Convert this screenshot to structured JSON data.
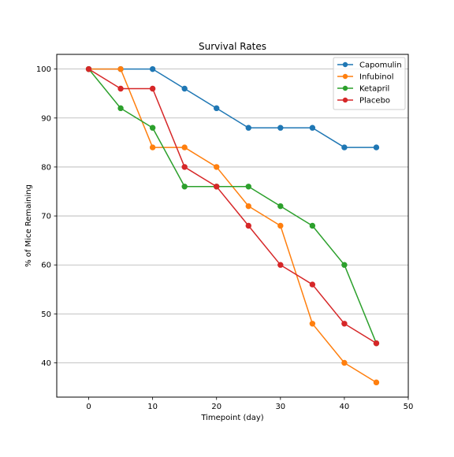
{
  "chart_data": {
    "type": "line",
    "title": "Survival Rates",
    "xlabel": "Timepoint (day)",
    "ylabel": "% of Mice Remaining",
    "xlim": [
      -5,
      50
    ],
    "ylim": [
      33,
      103
    ],
    "xticks": [
      0,
      10,
      20,
      30,
      40,
      50
    ],
    "yticks": [
      40,
      50,
      60,
      70,
      80,
      90,
      100
    ],
    "grid": "y-axis horizontal lines",
    "legend_position": "top-right",
    "x": [
      0,
      5,
      10,
      15,
      20,
      25,
      30,
      35,
      40,
      45
    ],
    "series": [
      {
        "name": "Capomulin",
        "color": "#1f77b4",
        "values": [
          100,
          100,
          100,
          96,
          92,
          88,
          88,
          88,
          84,
          84
        ]
      },
      {
        "name": "Infubinol",
        "color": "#ff7f0e",
        "values": [
          100,
          100,
          84,
          84,
          80,
          72,
          68,
          48,
          40,
          36
        ]
      },
      {
        "name": "Ketapril",
        "color": "#2ca02c",
        "values": [
          100,
          92,
          88,
          76,
          76,
          76,
          72,
          68,
          60,
          44
        ]
      },
      {
        "name": "Placebo",
        "color": "#d62728",
        "values": [
          100,
          96,
          96,
          80,
          76,
          68,
          60,
          56,
          48,
          44
        ]
      }
    ]
  }
}
